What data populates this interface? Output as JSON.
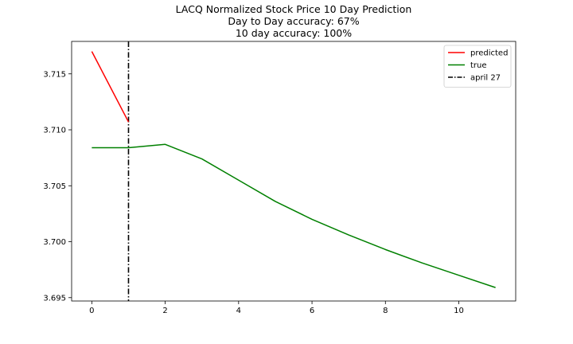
{
  "chart_data": {
    "type": "line",
    "title_lines": [
      "LACQ Normalized Stock Price 10 Day Prediction",
      "Day to Day accuracy: 67%",
      "10 day accuracy: 100%"
    ],
    "xlabel": "",
    "ylabel": "",
    "xlim": [
      -0.55,
      11.55
    ],
    "ylim": [
      3.6947,
      3.7179
    ],
    "x_ticks": [
      0,
      2,
      4,
      6,
      8,
      10
    ],
    "x_tick_labels": [
      "0",
      "2",
      "4",
      "6",
      "8",
      "10"
    ],
    "y_ticks": [
      3.695,
      3.7,
      3.705,
      3.71,
      3.715
    ],
    "y_tick_labels": [
      "3.695",
      "3.700",
      "3.705",
      "3.710",
      "3.715"
    ],
    "grid": false,
    "legend_position": "top-right",
    "series": [
      {
        "name": "predicted",
        "color": "#ff0000",
        "style": "solid",
        "x": [
          0,
          1
        ],
        "y": [
          3.717,
          3.7107
        ]
      },
      {
        "name": "true",
        "color": "#008000",
        "style": "solid",
        "x": [
          0,
          1,
          2,
          3,
          4,
          5,
          6,
          7,
          8,
          9,
          10,
          11
        ],
        "y": [
          3.7084,
          3.7084,
          3.7087,
          3.7074,
          3.7055,
          3.7036,
          3.702,
          3.7006,
          3.6993,
          3.6981,
          3.697,
          3.6959
        ]
      }
    ],
    "vertical_lines": [
      {
        "name": "april 27",
        "x": 1,
        "color": "#000000",
        "style": "dashdot"
      }
    ]
  }
}
